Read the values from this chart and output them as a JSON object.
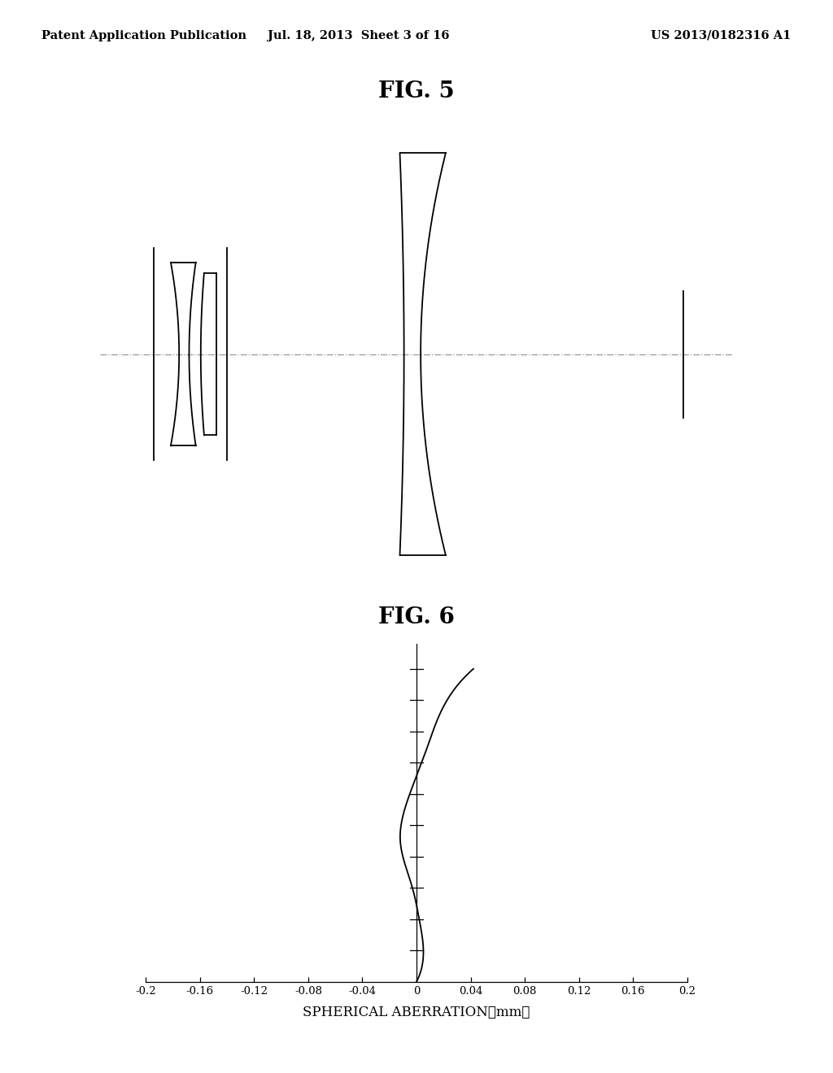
{
  "header_left": "Patent Application Publication",
  "header_mid": "Jul. 18, 2013  Sheet 3 of 16",
  "header_right": "US 2013/0182316 A1",
  "fig5_title": "FIG. 5",
  "fig6_title": "FIG. 6",
  "fig6_xlabel": "SPHERICAL ABERRATION（mm）",
  "fig6_xlim": [
    -0.2,
    0.2
  ],
  "fig6_xticks": [
    -0.2,
    -0.16,
    -0.12,
    -0.08,
    -0.04,
    0,
    0.04,
    0.08,
    0.12,
    0.16,
    0.2
  ],
  "fig6_xtick_labels": [
    "-0.2",
    "-0.16",
    "-0.12",
    "-0.08",
    "-0.04",
    "0",
    "0.04",
    "0.08",
    "0.12",
    "0.16",
    "0.2"
  ],
  "background_color": "#ffffff",
  "line_color": "#000000",
  "dash_color": "#999999"
}
